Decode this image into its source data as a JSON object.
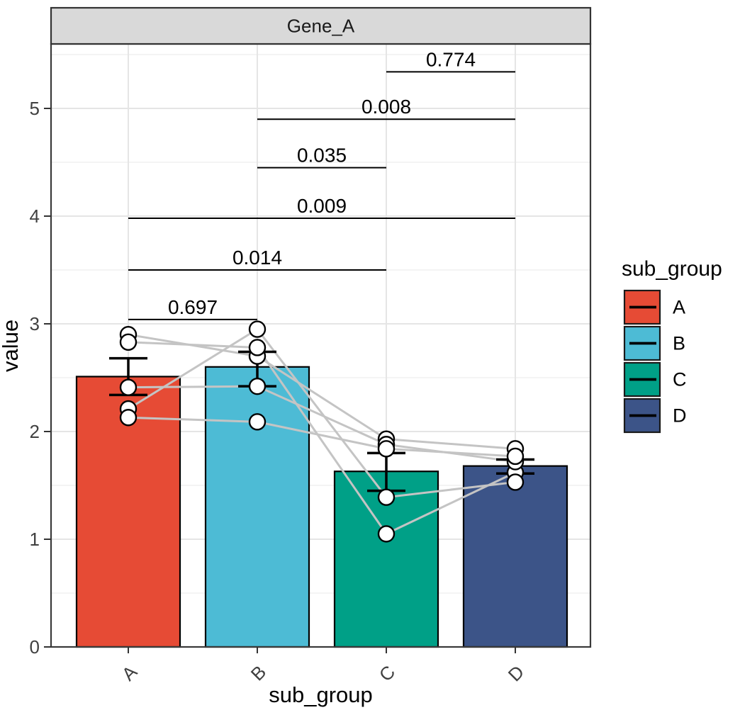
{
  "facet": {
    "title": "Gene_A"
  },
  "y_axis": {
    "title": "value",
    "tick_labels": [
      "0",
      "1",
      "2",
      "3",
      "4",
      "5"
    ]
  },
  "x_axis": {
    "title": "sub_group",
    "categories": [
      "A",
      "B",
      "C",
      "D"
    ]
  },
  "legend": {
    "title": "sub_group",
    "entries": [
      {
        "label": "A",
        "color": "#E64B35"
      },
      {
        "label": "B",
        "color": "#4DBBD5"
      },
      {
        "label": "C",
        "color": "#00A087"
      },
      {
        "label": "D",
        "color": "#3C5488"
      }
    ]
  },
  "chart_data": {
    "type": "bar",
    "title": "Gene_A",
    "xlabel": "sub_group",
    "ylabel": "value",
    "ylim": [
      0,
      5.6
    ],
    "yticks": [
      0,
      1,
      2,
      3,
      4,
      5
    ],
    "grid": "major and minor horizontal, major vertical at categories",
    "legend_position": "right",
    "categories": [
      "A",
      "B",
      "C",
      "D"
    ],
    "bar_colors": [
      "#E64B35",
      "#4DBBD5",
      "#00A087",
      "#3C5488"
    ],
    "bar_means": [
      2.51,
      2.6,
      1.63,
      1.68
    ],
    "error_upper": [
      2.68,
      2.74,
      1.8,
      1.74
    ],
    "error_lower": [
      2.34,
      2.42,
      1.45,
      1.61
    ],
    "paired_points": [
      [
        2.9,
        2.7,
        1.93,
        1.84
      ],
      [
        2.83,
        2.78,
        1.05,
        1.62
      ],
      [
        2.41,
        2.42,
        1.88,
        1.72
      ],
      [
        2.21,
        2.95,
        1.39,
        1.53
      ],
      [
        2.13,
        2.09,
        1.84,
        1.77
      ]
    ],
    "comparisons": [
      {
        "group1": "A",
        "group2": "B",
        "label": "0.697",
        "y": 3.04
      },
      {
        "group1": "A",
        "group2": "C",
        "label": "0.014",
        "y": 3.5
      },
      {
        "group1": "A",
        "group2": "D",
        "label": "0.009",
        "y": 3.98
      },
      {
        "group1": "B",
        "group2": "C",
        "label": "0.035",
        "y": 4.45
      },
      {
        "group1": "B",
        "group2": "D",
        "label": "0.008",
        "y": 4.9
      },
      {
        "group1": "C",
        "group2": "D",
        "label": "0.774",
        "y": 5.34
      }
    ]
  },
  "style": {
    "point_fill": "#FFFFFF",
    "point_stroke": "#000000",
    "paired_line_color": "#C4C4C4",
    "errorbar_color": "#000000",
    "bracket_color": "#000000",
    "grid_major": "#E5E5E5",
    "grid_minor": "#F1F1F1",
    "panel_border": "#3A3A3A",
    "strip_fill": "#D9D9D9",
    "strip_border": "#333333",
    "strip_text_color": "#1A1A1A",
    "title_text_color": "#000000",
    "tick_text_color": "#404040",
    "pvalue_text_color": "#000000"
  }
}
